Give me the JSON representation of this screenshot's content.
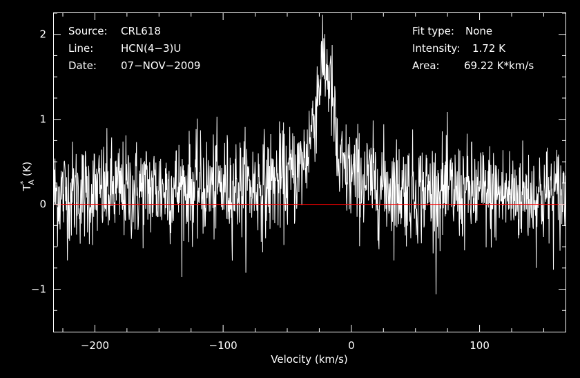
{
  "chart_data": {
    "type": "line",
    "xlabel": "Velocity (km/s)",
    "ylabel": "T",
    "ylabel_sup": "*",
    "ylabel_sub": "A",
    "ylabel_unit": " (K)",
    "xlim": [
      -232,
      167
    ],
    "ylim": [
      -1.5,
      2.25
    ],
    "xticks": [
      -200,
      -100,
      0,
      100
    ],
    "xtick_labels": [
      "−200",
      "−100",
      "0",
      "100"
    ],
    "yticks": [
      -1,
      0,
      1,
      2
    ],
    "ytick_labels": [
      "−1",
      "0",
      "1",
      "2"
    ],
    "grid": false,
    "baseline": 0,
    "colors": {
      "background": "#000000",
      "trace": "#ffffff",
      "baseline": "#ff0000",
      "frame": "#ffffff"
    },
    "header": {
      "source_key": "Source:",
      "source_val": "CRL618",
      "line_key": "Line:",
      "line_val": "HCN(4−3)U",
      "date_key": "Date:",
      "date_val": "07−NOV−2009",
      "fit_key": "Fit type:",
      "fit_val": "None",
      "intensity_key": "Intensity:",
      "intensity_val": "1.72 K",
      "area_key": "Area:",
      "area_val": "69.22 K*km/s"
    },
    "series": [
      {
        "noise_rms": 0.3,
        "profile": {
          "x": [
            -232,
            -200,
            -150,
            -100,
            -70,
            -50,
            -40,
            -35,
            -30,
            -25,
            -22,
            -18,
            -15,
            -12,
            -10,
            -5,
            0,
            10,
            30,
            50,
            100,
            167
          ],
          "y": [
            0.12,
            0.14,
            0.18,
            0.2,
            0.22,
            0.3,
            0.42,
            0.58,
            0.95,
            1.45,
            1.68,
            1.55,
            1.25,
            0.75,
            0.4,
            0.38,
            0.34,
            0.28,
            0.2,
            0.16,
            0.12,
            0.1
          ]
        }
      }
    ]
  }
}
